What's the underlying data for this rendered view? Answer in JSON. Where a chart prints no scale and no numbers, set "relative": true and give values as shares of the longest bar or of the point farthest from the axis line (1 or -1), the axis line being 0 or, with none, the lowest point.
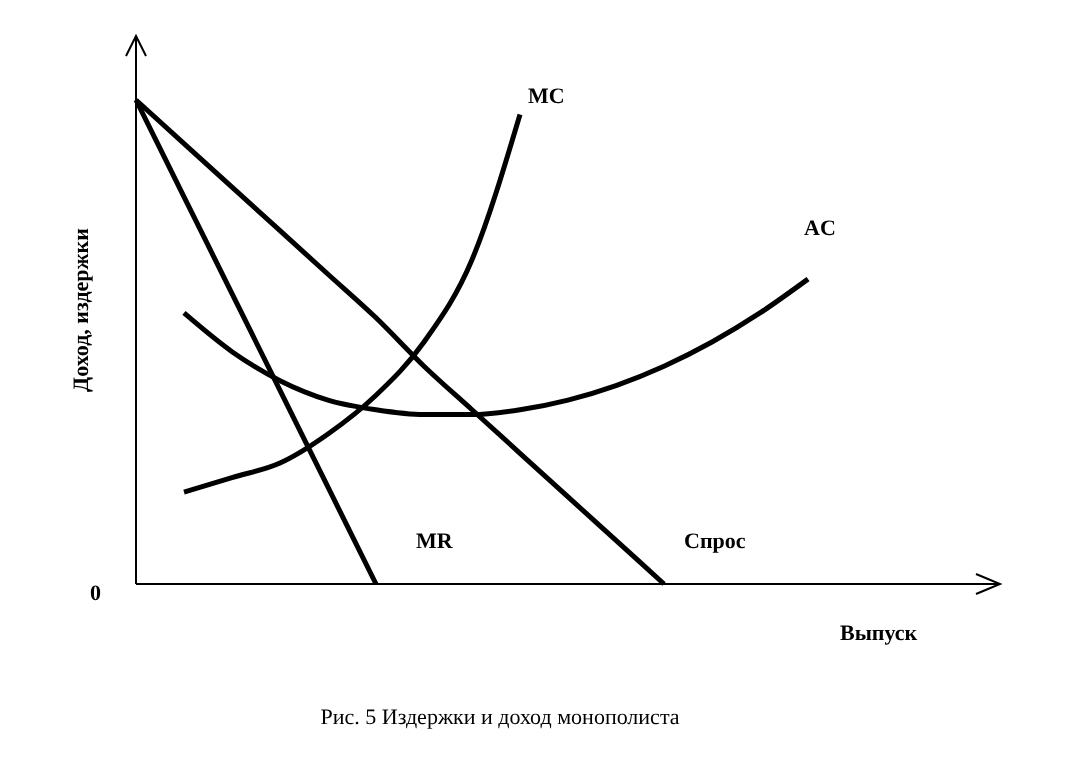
{
  "chart_data": {
    "type": "line",
    "relative": true,
    "title": "Рис. 5  Издержки и доход монополиста",
    "xlabel": "Выпуск",
    "ylabel": "Доход, издержки",
    "categories": [
      null,
      null,
      null,
      null,
      null,
      null,
      null,
      null,
      null,
      null,
      null,
      null,
      null,
      null,
      null,
      null,
      null,
      null,
      null
    ],
    "series": [
      {
        "name": "MC",
        "color": "#000000",
        "values": [
          null,
          0.19,
          0.22,
          0.25,
          0.31,
          0.39,
          0.5,
          0.67,
          0.97,
          null,
          null,
          null,
          null,
          null,
          null,
          null,
          null,
          null,
          null
        ]
      },
      {
        "name": "AC",
        "color": "#000000",
        "values": [
          null,
          0.56,
          0.48,
          0.42,
          0.38,
          0.36,
          0.35,
          0.35,
          0.36,
          0.38,
          0.41,
          0.45,
          0.5,
          0.56,
          0.63,
          null,
          null,
          null,
          null
        ]
      },
      {
        "name": "MR",
        "color": "#000000",
        "values": [
          1,
          0.8,
          0.6,
          0.4,
          0.2,
          0,
          null,
          null,
          null,
          null,
          null,
          null,
          null,
          null,
          null,
          null,
          null,
          null,
          null
        ]
      },
      {
        "name": "Спрос",
        "color": "#000000",
        "values": [
          1,
          0.91,
          0.82,
          0.73,
          0.64,
          0.55,
          0.45,
          0.36,
          0.27,
          0.18,
          0.09,
          0,
          null,
          null,
          null,
          null,
          null,
          null,
          null
        ]
      }
    ],
    "annotations": [
      "0"
    ],
    "legend": false,
    "marker": "none",
    "line_style": "solid"
  }
}
